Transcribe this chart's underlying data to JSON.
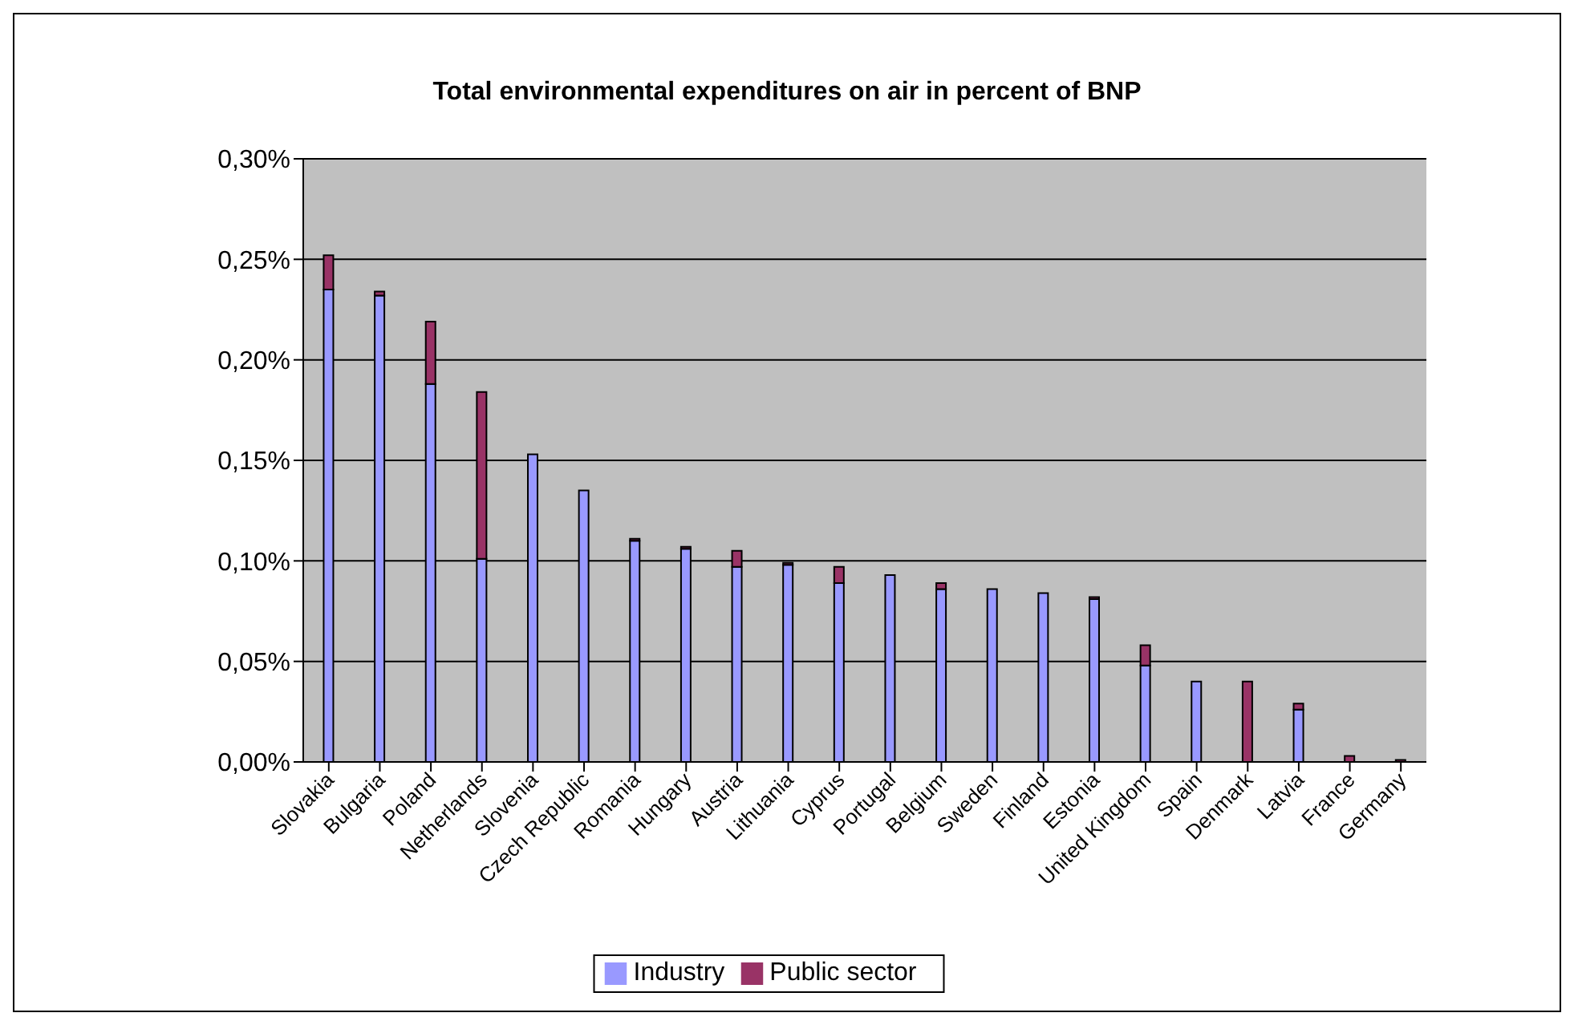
{
  "chart_data": {
    "type": "bar",
    "title": "Total environmental expenditures on air in percent of BNP",
    "stacked": true,
    "categories": [
      "Slovakia",
      "Bulgaria",
      "Poland",
      "Netherlands",
      "Slovenia",
      "Czech Republic",
      "Romania",
      "Hungary",
      "Austria",
      "Lithuania",
      "Cyprus",
      "Portugal",
      "Belgium",
      "Sweden",
      "Finland",
      "Estonia",
      "United Kingdom",
      "Spain",
      "Denmark",
      "Latvia",
      "France",
      "Germany"
    ],
    "series": [
      {
        "name": "Industry",
        "color": "#9999ff",
        "values": [
          0.235,
          0.232,
          0.188,
          0.101,
          0.153,
          0.135,
          0.11,
          0.106,
          0.097,
          0.098,
          0.089,
          0.093,
          0.086,
          0.086,
          0.084,
          0.081,
          0.048,
          0.04,
          0,
          0.026,
          0,
          0
        ]
      },
      {
        "name": "Public sector",
        "color": "#993366",
        "values": [
          0.017,
          0.002,
          0.031,
          0.083,
          0,
          0,
          0.001,
          0.001,
          0.008,
          0.001,
          0.008,
          0,
          0.003,
          0,
          0,
          0.001,
          0.01,
          0,
          0.04,
          0.003,
          0.003,
          0.001
        ]
      }
    ],
    "ylim": [
      0,
      0.3
    ],
    "yticks": [
      {
        "value": 0,
        "label": "0,00%"
      },
      {
        "value": 0.05,
        "label": "0,05%"
      },
      {
        "value": 0.1,
        "label": "0,10%"
      },
      {
        "value": 0.15,
        "label": "0,15%"
      },
      {
        "value": 0.2,
        "label": "0,20%"
      },
      {
        "value": 0.25,
        "label": "0,25%"
      },
      {
        "value": 0.3,
        "label": "0,30%"
      }
    ],
    "grid": "y",
    "legend": "bottom"
  }
}
